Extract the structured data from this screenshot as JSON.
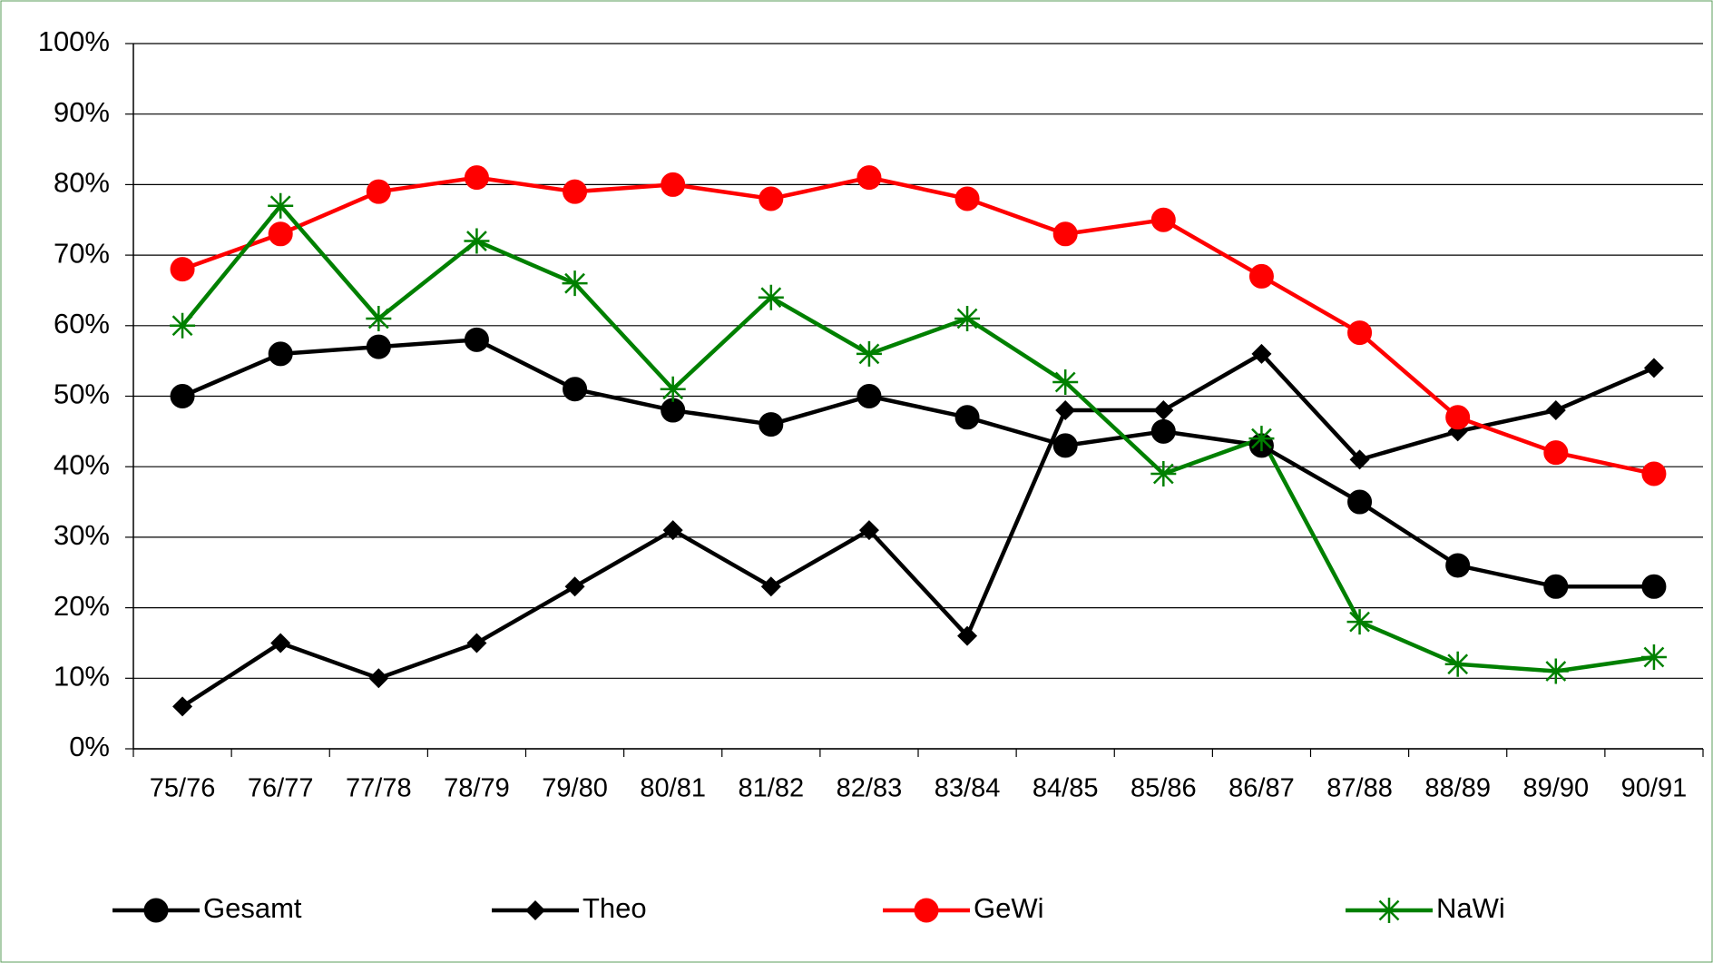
{
  "chart_data": {
    "type": "line",
    "categories": [
      "75/76",
      "76/77",
      "77/78",
      "78/79",
      "79/80",
      "80/81",
      "81/82",
      "82/83",
      "83/84",
      "84/85",
      "85/86",
      "86/87",
      "87/88",
      "88/89",
      "89/90",
      "90/91"
    ],
    "series": [
      {
        "name": "Gesamt",
        "color": "#000000",
        "marker": "circle",
        "values": [
          50,
          56,
          57,
          58,
          51,
          48,
          46,
          50,
          47,
          43,
          45,
          43,
          35,
          26,
          23,
          23
        ]
      },
      {
        "name": "Theo",
        "color": "#000000",
        "marker": "diamond",
        "values": [
          6,
          15,
          10,
          15,
          23,
          31,
          23,
          31,
          16,
          48,
          48,
          56,
          41,
          45,
          48,
          54
        ]
      },
      {
        "name": "GeWi",
        "color": "#ff0000",
        "marker": "circle",
        "values": [
          68,
          73,
          79,
          81,
          79,
          80,
          78,
          81,
          78,
          73,
          75,
          67,
          59,
          47,
          42,
          39
        ]
      },
      {
        "name": "NaWi",
        "color": "#008000",
        "marker": "star",
        "values": [
          60,
          77,
          61,
          72,
          66,
          51,
          64,
          56,
          61,
          52,
          39,
          44,
          18,
          12,
          11,
          13
        ]
      }
    ],
    "ylim": [
      0,
      100
    ],
    "yticks": [
      {
        "value": 0,
        "label": "0%"
      },
      {
        "value": 10,
        "label": "10%"
      },
      {
        "value": 20,
        "label": "20%"
      },
      {
        "value": 30,
        "label": "30%"
      },
      {
        "value": 40,
        "label": "40%"
      },
      {
        "value": 50,
        "label": "50%"
      },
      {
        "value": 60,
        "label": "60%"
      },
      {
        "value": 70,
        "label": "70%"
      },
      {
        "value": 80,
        "label": "80%"
      },
      {
        "value": 90,
        "label": "90%"
      },
      {
        "value": 100,
        "label": "100%"
      }
    ],
    "grid": true,
    "legend": "bottom"
  }
}
